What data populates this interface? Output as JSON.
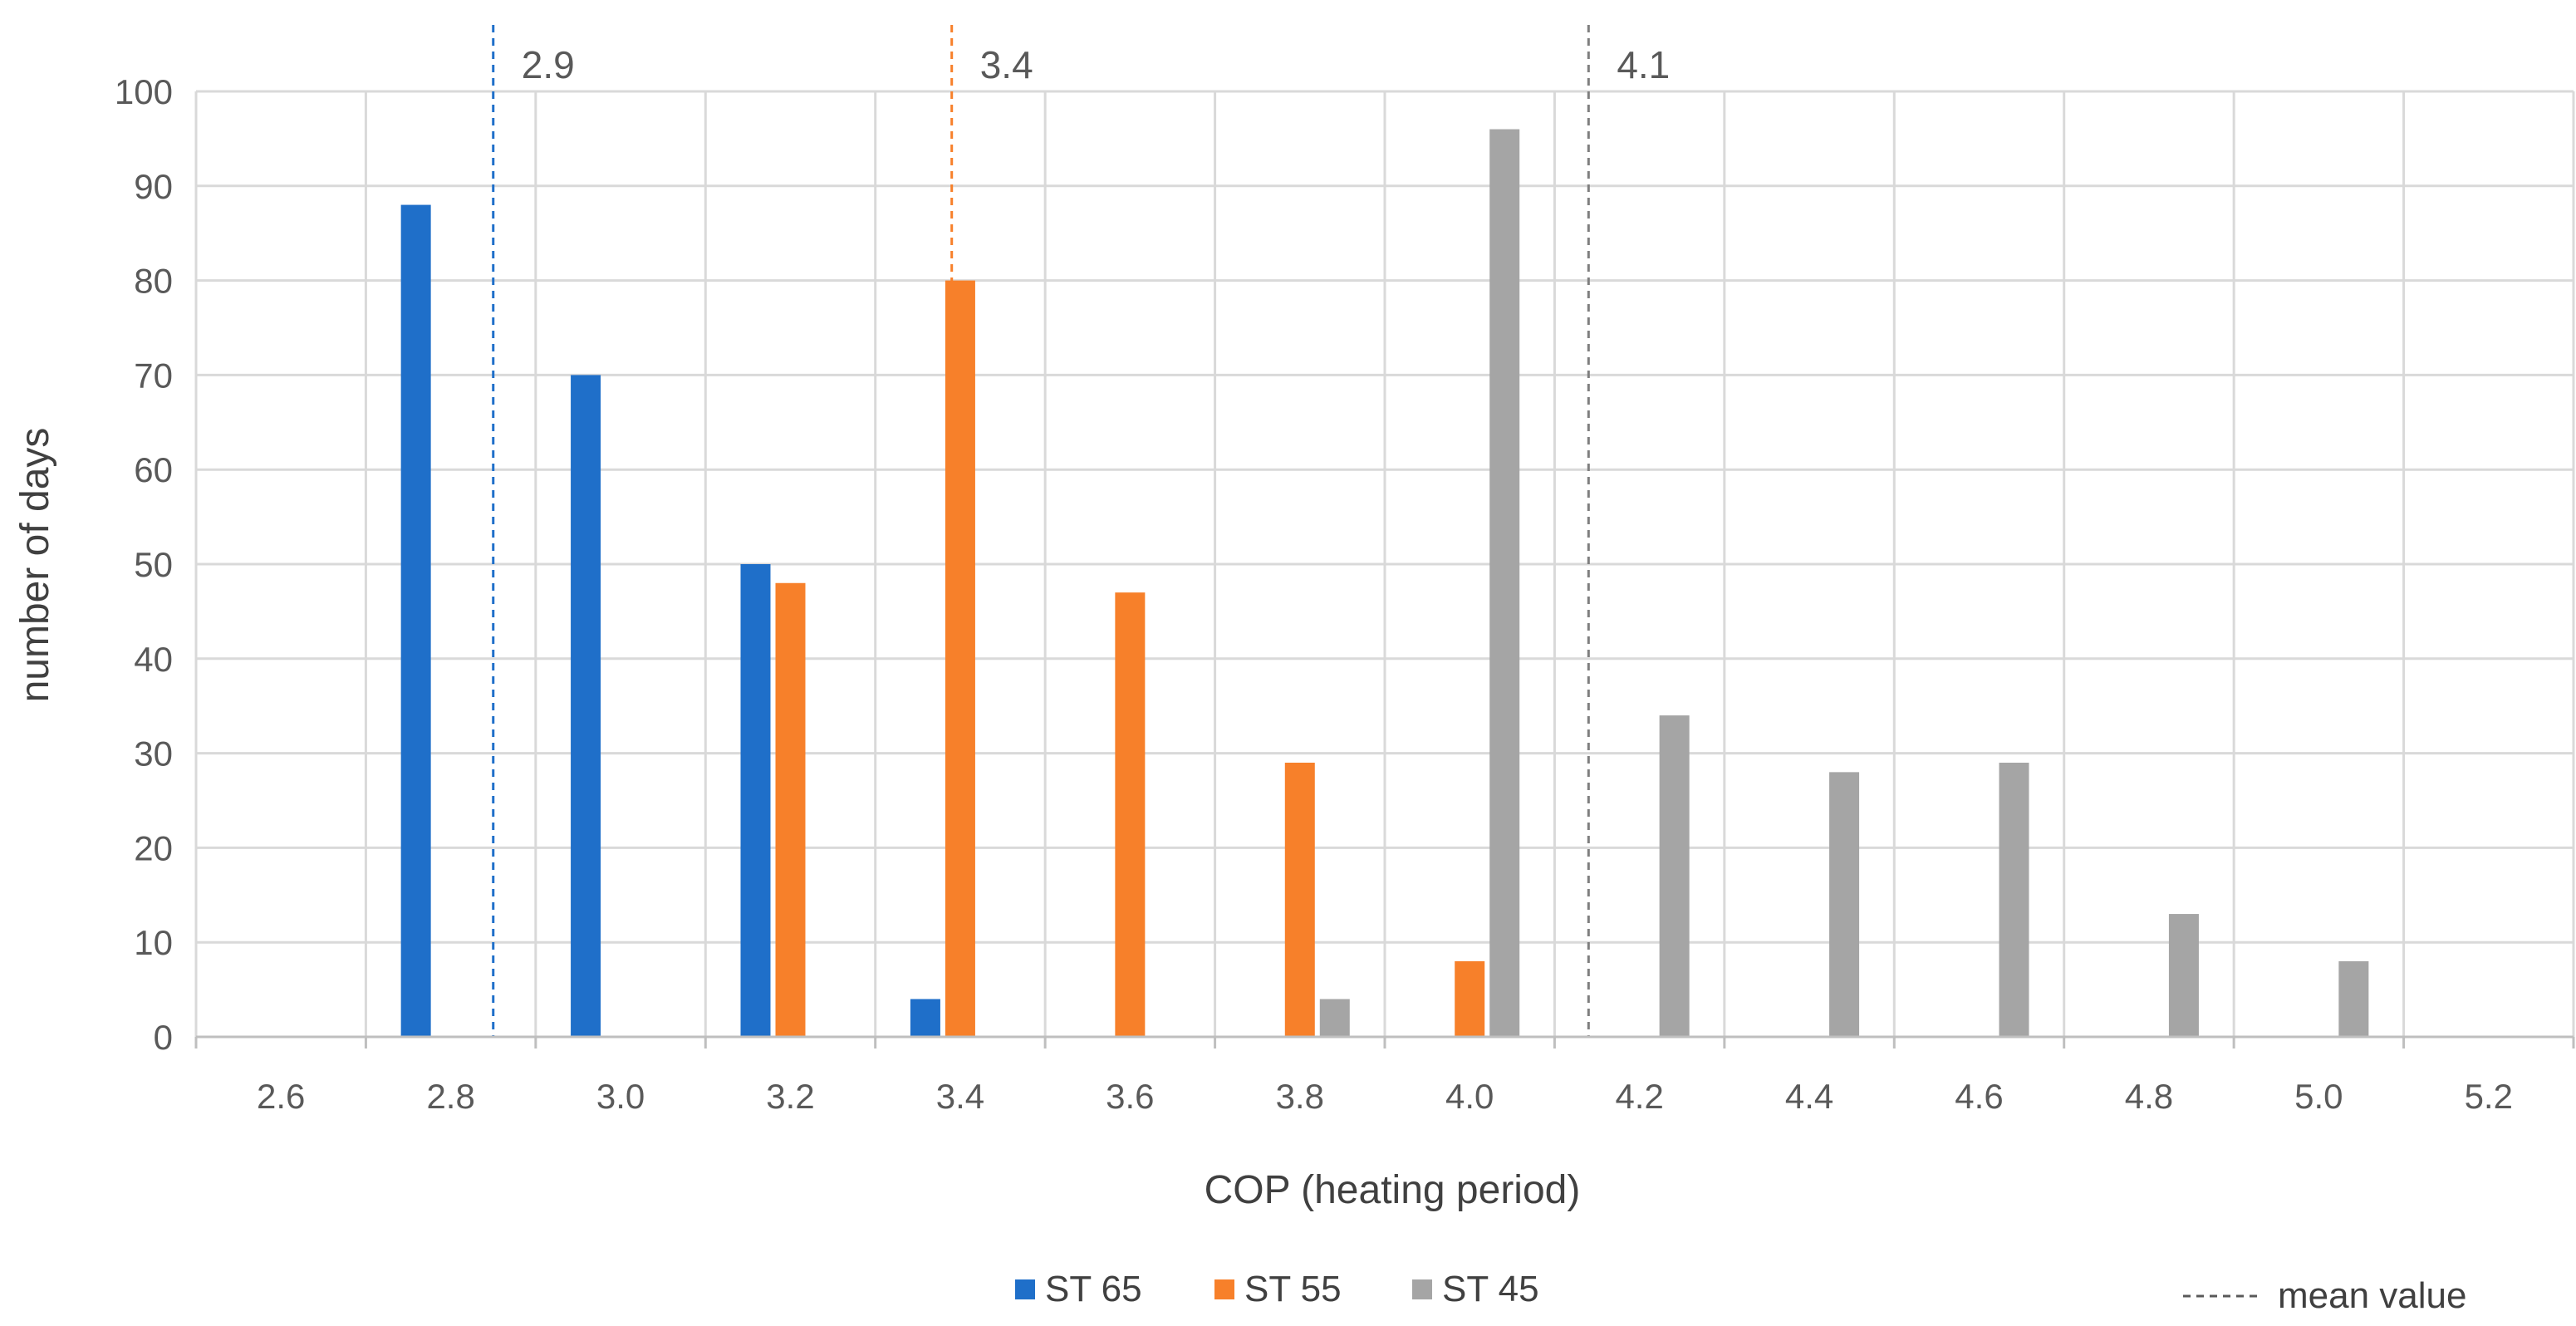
{
  "chart_data": {
    "type": "bar",
    "title": "",
    "xlabel": "COP (heating period)",
    "ylabel": "number of days",
    "ylim": [
      0,
      100
    ],
    "y_ticks": [
      "0",
      "10",
      "20",
      "30",
      "40",
      "50",
      "60",
      "70",
      "80",
      "90",
      "100"
    ],
    "categories": [
      "2.6",
      "2.8",
      "3.0",
      "3.2",
      "3.4",
      "3.6",
      "3.8",
      "4.0",
      "4.2",
      "4.4",
      "4.6",
      "4.8",
      "5.0",
      "5.2"
    ],
    "grid": true,
    "series": [
      {
        "name": "ST 65",
        "color": "#1f6fc9",
        "values": [
          0,
          88,
          70,
          50,
          4,
          0,
          0,
          0,
          0,
          0,
          0,
          0,
          0,
          0
        ]
      },
      {
        "name": "ST 55",
        "color": "#f7802a",
        "values": [
          0,
          0,
          0,
          48,
          80,
          47,
          29,
          8,
          0,
          0,
          0,
          0,
          0,
          0
        ]
      },
      {
        "name": "ST 45",
        "color": "#a5a5a5",
        "values": [
          0,
          0,
          0,
          0,
          0,
          0,
          4,
          96,
          34,
          28,
          29,
          13,
          8,
          0
        ]
      }
    ],
    "mean_lines": [
      {
        "series": "ST 65",
        "label": "2.9",
        "x": 2.85,
        "color": "#1f6fc9"
      },
      {
        "series": "ST 55",
        "label": "3.4",
        "x": 3.39,
        "color": "#f7802a"
      },
      {
        "series": "ST 45",
        "label": "4.1",
        "x": 4.14,
        "color": "#7f7f7f"
      }
    ],
    "legend": {
      "placement": "bottom",
      "entries": [
        "ST 65",
        "ST 55",
        "ST 45"
      ],
      "mean_entry": "mean value"
    }
  }
}
